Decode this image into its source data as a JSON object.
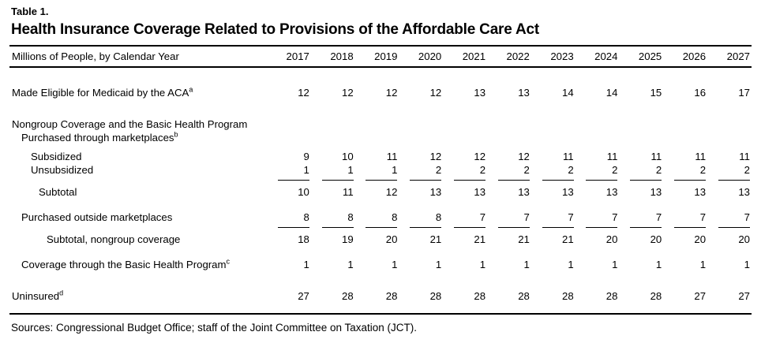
{
  "page": {
    "eyebrow": "Table 1.",
    "title": "Health Insurance Coverage Related to Provisions of the Affordable Care Act",
    "sources": "Sources: Congressional Budget Office; staff of the Joint Committee on Taxation (JCT)."
  },
  "colors": {
    "text": "#000000",
    "background": "#ffffff",
    "rule": "#000000"
  },
  "table": {
    "row_header": "Millions of People, by Calendar Year",
    "years": [
      "2017",
      "2018",
      "2019",
      "2020",
      "2021",
      "2022",
      "2023",
      "2024",
      "2025",
      "2026",
      "2027"
    ],
    "rows": [
      {
        "label": "Made Eligible for Medicaid by the ACA",
        "sup": "a",
        "indent": 0,
        "gap": "lg",
        "rule_after": false,
        "values": [
          12,
          12,
          12,
          12,
          13,
          13,
          14,
          14,
          15,
          16,
          17
        ]
      },
      {
        "label": "Nongroup Coverage and the Basic Health Program",
        "sup": null,
        "indent": 0,
        "gap": "lg",
        "rule_after": false,
        "values": []
      },
      {
        "label": "Purchased through marketplaces",
        "sup": "b",
        "indent": 1,
        "gap": "none",
        "rule_after": false,
        "values": []
      },
      {
        "label": "Subsidized",
        "sup": null,
        "indent": 2,
        "gap": "sm",
        "rule_after": false,
        "values": [
          9,
          10,
          11,
          12,
          12,
          12,
          11,
          11,
          11,
          11,
          11
        ]
      },
      {
        "label": "Unsubsidized",
        "sup": null,
        "indent": 2,
        "gap": "none",
        "rule_after": true,
        "values": [
          1,
          1,
          1,
          2,
          2,
          2,
          2,
          2,
          2,
          2,
          2
        ]
      },
      {
        "label": "Subtotal",
        "sup": null,
        "indent": 3,
        "gap": "xs",
        "rule_after": false,
        "values": [
          10,
          11,
          12,
          13,
          13,
          13,
          13,
          13,
          13,
          13,
          13
        ]
      },
      {
        "label": "Purchased outside marketplaces",
        "sup": null,
        "indent": 1,
        "gap": "md",
        "rule_after": true,
        "values": [
          8,
          8,
          8,
          8,
          7,
          7,
          7,
          7,
          7,
          7,
          7
        ]
      },
      {
        "label": "Subtotal, nongroup coverage",
        "sup": null,
        "indent": 4,
        "gap": "xs",
        "rule_after": false,
        "values": [
          18,
          19,
          20,
          21,
          21,
          21,
          21,
          20,
          20,
          20,
          20
        ]
      },
      {
        "label": "Coverage through the Basic Health Program",
        "sup": "c",
        "indent": 1,
        "gap": "md",
        "rule_after": false,
        "values": [
          1,
          1,
          1,
          1,
          1,
          1,
          1,
          1,
          1,
          1,
          1
        ]
      },
      {
        "label": "Uninsured",
        "sup": "d",
        "indent": 0,
        "gap": "lg",
        "rule_after": false,
        "values": [
          27,
          28,
          28,
          28,
          28,
          28,
          28,
          28,
          28,
          27,
          27
        ]
      }
    ]
  }
}
